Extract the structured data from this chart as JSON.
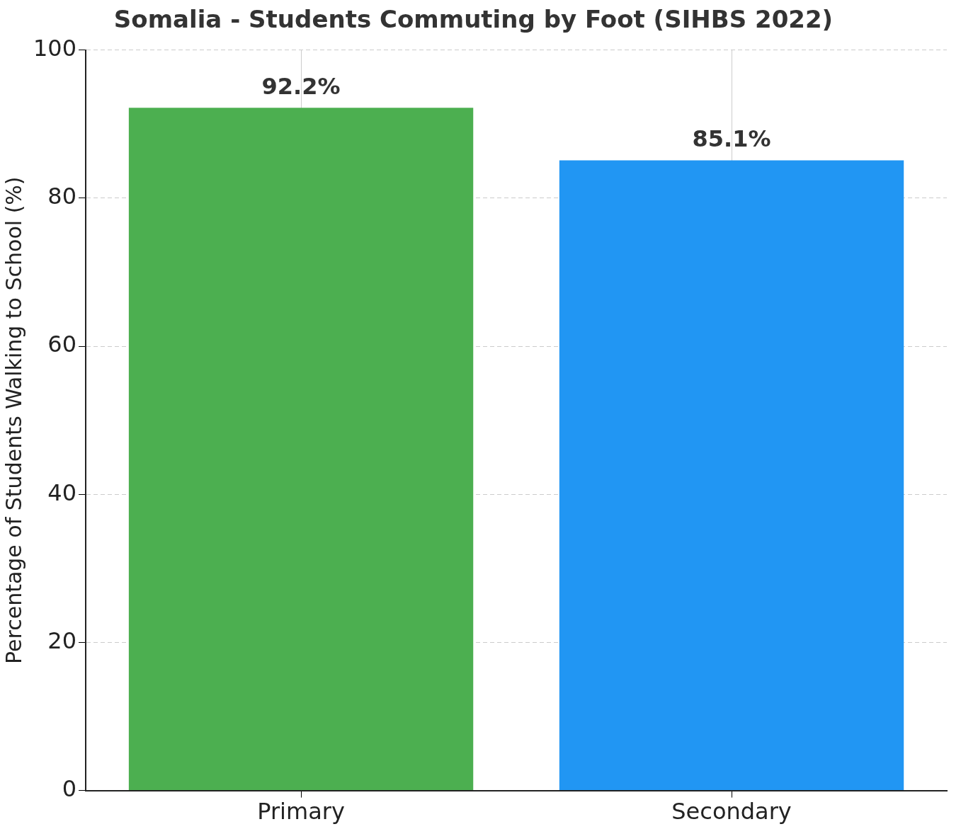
{
  "chart_data": {
    "type": "bar",
    "title": "Somalia - Students Commuting by Foot (SIHBS 2022)",
    "ylabel": "Percentage of Students Walking to School (%)",
    "categories": [
      "Primary",
      "Secondary"
    ],
    "values": [
      92.2,
      85.1
    ],
    "colors": [
      "#4caf50",
      "#2196f3"
    ],
    "value_labels": [
      "92.2%",
      "85.1%"
    ],
    "ylim": [
      0,
      100
    ],
    "yticks": [
      0,
      20,
      40,
      60,
      80,
      100
    ],
    "grid": true
  }
}
